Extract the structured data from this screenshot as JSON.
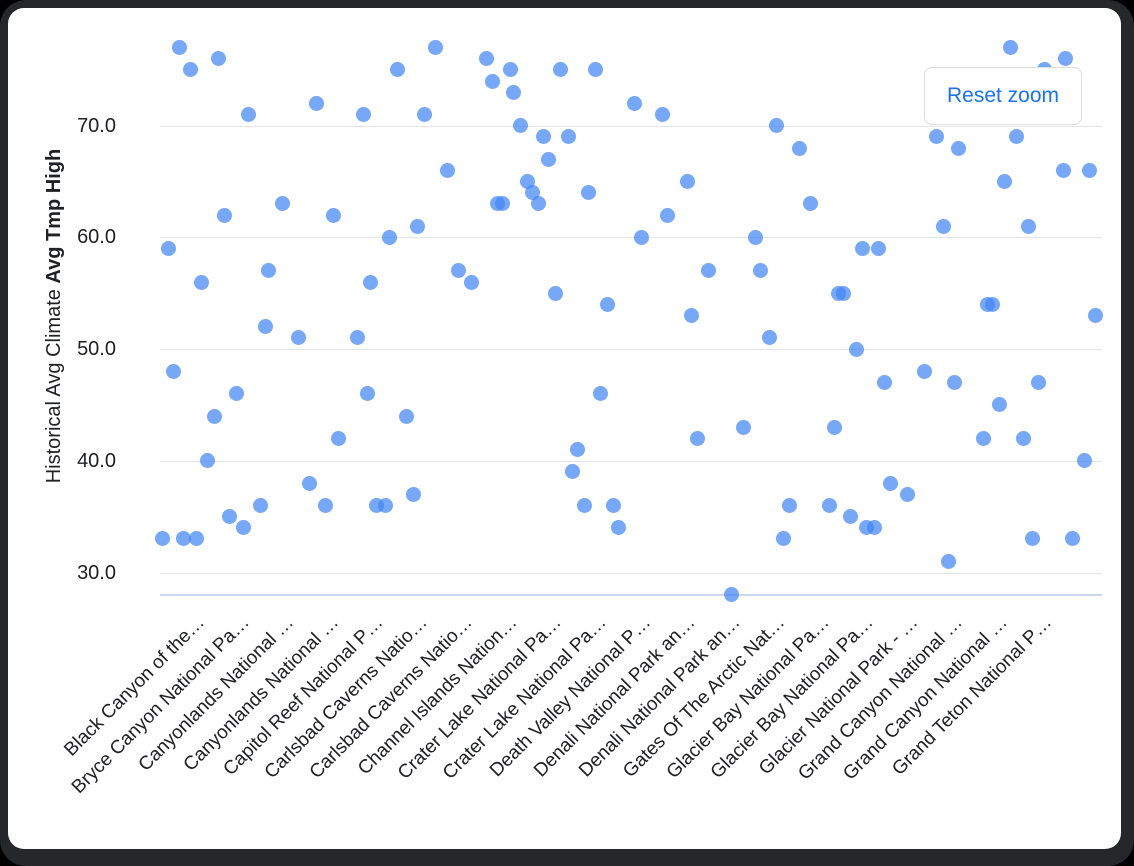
{
  "window": {
    "frame_color": "#24282b",
    "background": "#ffffff"
  },
  "button": {
    "label": "Reset zoom",
    "text_color": "#1a73e8",
    "border_color": "#dadce0"
  },
  "y_axis": {
    "title_regular": "Historical Avg Climate ",
    "title_bold": "Avg Tmp High",
    "tick_labels": [
      "70.0",
      "60.0",
      "50.0",
      "40.0",
      "30.0"
    ]
  },
  "chart_data": {
    "type": "scatter",
    "title": "",
    "ylabel": "Historical Avg Climate Avg Tmp High",
    "xlabel": "",
    "y_ticks": [
      70,
      60,
      50,
      40,
      30
    ],
    "ylim": [
      28,
      78
    ],
    "grid": true,
    "legend_position": "none",
    "point_color": "#4285f4",
    "point_opacity": 0.72,
    "categories": [
      "Black Canyon of the…",
      "Bryce Canyon National Pa…",
      "Canyonlands National …",
      "Canyonlands National …",
      "Capitol Reef National P…",
      "Carlsbad Caverns Natio…",
      "Carlsbad Caverns Natio…",
      "Channel Islands Nation…",
      "Crater Lake National Pa…",
      "Crater Lake National Pa…",
      "Death Valley National P…",
      "Denali National Park an…",
      "Denali National Park an…",
      "Gates Of The Arctic Nat…",
      "Glacier Bay National Pa…",
      "Glacier Bay National Pa…",
      "Glacier National Park - …",
      "Grand Canyon National …",
      "Grand Canyon National …",
      "Grand Teton National P…"
    ],
    "points_note": "each point = [x_pixel_in_screenshot, avg_tmp_high_value]; x is jittered across park categories",
    "points": [
      [
        179,
        77
      ],
      [
        218,
        76
      ],
      [
        190,
        75
      ],
      [
        435,
        77
      ],
      [
        397,
        75
      ],
      [
        316,
        72
      ],
      [
        248,
        71
      ],
      [
        363,
        71
      ],
      [
        424,
        71
      ],
      [
        447,
        66
      ],
      [
        282,
        63
      ],
      [
        224,
        62
      ],
      [
        333,
        62
      ],
      [
        417,
        61
      ],
      [
        389,
        60
      ],
      [
        168,
        59
      ],
      [
        268,
        57
      ],
      [
        458,
        57
      ],
      [
        201,
        56
      ],
      [
        370,
        56
      ],
      [
        471,
        56
      ],
      [
        486,
        76
      ],
      [
        510,
        75
      ],
      [
        492,
        74
      ],
      [
        513,
        73
      ],
      [
        560,
        75
      ],
      [
        595,
        75
      ],
      [
        634,
        72
      ],
      [
        662,
        71
      ],
      [
        776,
        70
      ],
      [
        520,
        70
      ],
      [
        543,
        69
      ],
      [
        568,
        69
      ],
      [
        548,
        67
      ],
      [
        527,
        65
      ],
      [
        687,
        65
      ],
      [
        532,
        64
      ],
      [
        588,
        64
      ],
      [
        497,
        63
      ],
      [
        502,
        63
      ],
      [
        538,
        63
      ],
      [
        667,
        62
      ],
      [
        641,
        60
      ],
      [
        755,
        60
      ],
      [
        708,
        57
      ],
      [
        760,
        57
      ],
      [
        555,
        55
      ],
      [
        607,
        54
      ],
      [
        1010,
        77
      ],
      [
        1065,
        76
      ],
      [
        1044,
        75
      ],
      [
        936,
        69
      ],
      [
        1016,
        69
      ],
      [
        958,
        68
      ],
      [
        799,
        68
      ],
      [
        1063,
        66
      ],
      [
        1089,
        66
      ],
      [
        1004,
        65
      ],
      [
        810,
        63
      ],
      [
        943,
        61
      ],
      [
        1028,
        61
      ],
      [
        862,
        59
      ],
      [
        878,
        59
      ],
      [
        838,
        55
      ],
      [
        843,
        55
      ],
      [
        987,
        54
      ],
      [
        992,
        54
      ],
      [
        265,
        52
      ],
      [
        298,
        51
      ],
      [
        357,
        51
      ],
      [
        173,
        48
      ],
      [
        236,
        46
      ],
      [
        367,
        46
      ],
      [
        214,
        44
      ],
      [
        406,
        44
      ],
      [
        338,
        42
      ],
      [
        207,
        40
      ],
      [
        309,
        38
      ],
      [
        413,
        37
      ],
      [
        325,
        36
      ],
      [
        376,
        36
      ],
      [
        385,
        36
      ],
      [
        260,
        36
      ],
      [
        229,
        35
      ],
      [
        243,
        34
      ],
      [
        162,
        33
      ],
      [
        183,
        33
      ],
      [
        196,
        33
      ],
      [
        691,
        53
      ],
      [
        769,
        51
      ],
      [
        600,
        46
      ],
      [
        743,
        43
      ],
      [
        697,
        42
      ],
      [
        577,
        41
      ],
      [
        572,
        39
      ],
      [
        584,
        36
      ],
      [
        613,
        36
      ],
      [
        618,
        34
      ],
      [
        783,
        33
      ],
      [
        731,
        28
      ],
      [
        1095,
        53
      ],
      [
        856,
        50
      ],
      [
        924,
        48
      ],
      [
        884,
        47
      ],
      [
        954,
        47
      ],
      [
        1038,
        47
      ],
      [
        999,
        45
      ],
      [
        834,
        43
      ],
      [
        983,
        42
      ],
      [
        1023,
        42
      ],
      [
        1084,
        40
      ],
      [
        890,
        38
      ],
      [
        907,
        37
      ],
      [
        789,
        36
      ],
      [
        829,
        36
      ],
      [
        850,
        35
      ],
      [
        866,
        34
      ],
      [
        874,
        34
      ],
      [
        1032,
        33
      ],
      [
        1072,
        33
      ],
      [
        948,
        31
      ]
    ]
  }
}
